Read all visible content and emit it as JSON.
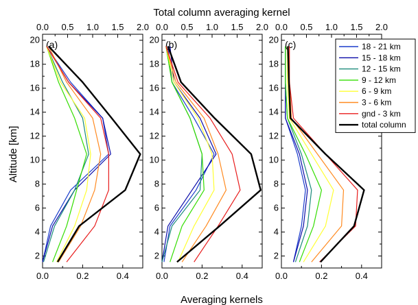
{
  "chart_data": {
    "type": "line",
    "xlabel": "Averaging kernels",
    "x2label": "Total column averaging kernel",
    "ylabel": "Altitude [km]",
    "xlim": [
      0.0,
      0.5
    ],
    "x2lim": [
      0.0,
      2.0
    ],
    "ylim": [
      1.0,
      20.5
    ],
    "x_ticks": [
      "0.0",
      "0.2",
      "0.4"
    ],
    "x2_ticks": [
      "0.0",
      "0.5",
      "1.0",
      "1.5",
      "2.0"
    ],
    "y_ticks": [
      "2",
      "4",
      "6",
      "8",
      "10",
      "12",
      "14",
      "16",
      "18",
      "20"
    ],
    "altitudes": [
      1.5,
      4.5,
      7.5,
      10.5,
      13.5,
      16.5,
      19.5
    ],
    "legend": {
      "position": "top-right",
      "entries": [
        "18 - 21 km",
        "15 - 18 km",
        "12 - 15 km",
        "9 - 12 km",
        "6 - 9 km",
        "3 - 6 km",
        "gnd - 3 km",
        "total column"
      ]
    },
    "series_colors": [
      "#1a3ccc",
      "#0a0aa8",
      "#1a8a7a",
      "#33dd00",
      "#ffff33",
      "#ff8a20",
      "#e81c1c",
      "#000000"
    ],
    "panels": [
      {
        "label": "(a)",
        "series": [
          {
            "values": [
              0.0,
              0.04,
              0.14,
              0.33,
              0.3,
              0.14,
              0.02
            ]
          },
          {
            "values": [
              0.0,
              0.05,
              0.16,
              0.34,
              0.3,
              0.13,
              0.02
            ]
          },
          {
            "values": [
              0.005,
              0.06,
              0.16,
              0.23,
              0.2,
              0.1,
              0.02
            ]
          },
          {
            "values": [
              0.05,
              0.12,
              0.17,
              0.22,
              0.16,
              0.08,
              0.02
            ]
          },
          {
            "values": [
              0.07,
              0.16,
              0.22,
              0.24,
              0.21,
              0.09,
              0.02
            ]
          },
          {
            "values": [
              0.08,
              0.19,
              0.26,
              0.29,
              0.25,
              0.12,
              0.03
            ]
          },
          {
            "values": [
              0.12,
              0.26,
              0.33,
              0.33,
              0.29,
              0.13,
              0.02
            ]
          },
          {
            "total": true,
            "values": [
              0.3,
              0.73,
              1.65,
              1.95,
              1.38,
              0.8,
              0.12
            ]
          }
        ]
      },
      {
        "label": "(b)",
        "series": [
          {
            "values": [
              0.01,
              0.04,
              0.17,
              0.26,
              0.16,
              0.05,
              0.03
            ]
          },
          {
            "values": [
              0.0,
              0.03,
              0.15,
              0.27,
              0.19,
              0.06,
              0.04
            ]
          },
          {
            "values": [
              0.0,
              0.05,
              0.19,
              0.2,
              0.14,
              0.05,
              0.02
            ]
          },
          {
            "values": [
              0.04,
              0.1,
              0.21,
              0.2,
              0.14,
              0.05,
              0.02
            ]
          },
          {
            "values": [
              0.08,
              0.16,
              0.26,
              0.25,
              0.18,
              0.06,
              0.02
            ]
          },
          {
            "values": [
              0.1,
              0.22,
              0.32,
              0.28,
              0.21,
              0.07,
              0.02
            ]
          },
          {
            "values": [
              0.16,
              0.28,
              0.39,
              0.35,
              0.24,
              0.08,
              0.02
            ]
          },
          {
            "total": true,
            "values": [
              0.3,
              1.15,
              1.97,
              1.78,
              1.05,
              0.38,
              0.12
            ]
          }
        ]
      },
      {
        "label": "(c)",
        "series": [
          {
            "values": [
              0.06,
              0.1,
              0.12,
              0.08,
              0.02,
              0.02,
              0.02
            ]
          },
          {
            "values": [
              0.06,
              0.11,
              0.13,
              0.09,
              0.02,
              0.02,
              0.02
            ]
          },
          {
            "values": [
              0.07,
              0.13,
              0.15,
              0.1,
              0.03,
              0.02,
              0.02
            ]
          },
          {
            "values": [
              0.09,
              0.16,
              0.2,
              0.12,
              0.03,
              0.02,
              0.02
            ]
          },
          {
            "values": [
              0.11,
              0.22,
              0.26,
              0.15,
              0.04,
              0.03,
              0.03
            ]
          },
          {
            "values": [
              0.15,
              0.3,
              0.31,
              0.18,
              0.05,
              0.04,
              0.03
            ]
          },
          {
            "values": [
              0.19,
              0.37,
              0.38,
              0.22,
              0.06,
              0.04,
              0.04
            ]
          },
          {
            "total": true,
            "values": [
              0.78,
              1.45,
              1.65,
              0.88,
              0.18,
              0.15,
              0.13
            ]
          }
        ]
      }
    ]
  }
}
